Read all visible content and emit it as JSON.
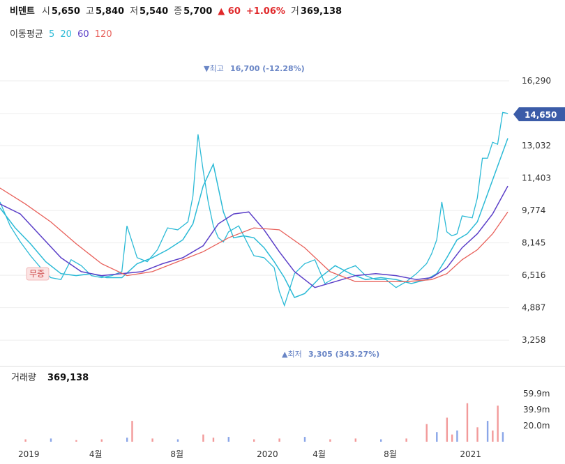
{
  "header": {
    "name": "비덴트",
    "open_label": "시",
    "open": "5,650",
    "high_label": "고",
    "high": "5,840",
    "low_label": "저",
    "low": "5,540",
    "close_label": "종",
    "close": "5,700",
    "change": "▲ 60",
    "change_pct": "+1.06%",
    "volume_label": "거",
    "volume": "369,138"
  },
  "ma_legend": {
    "label": "이동평균",
    "items": [
      {
        "period": "5",
        "color": "#2bbad6"
      },
      {
        "period": "20",
        "color": "#2bbad6"
      },
      {
        "period": "60",
        "color": "#5b3fc8"
      },
      {
        "period": "120",
        "color": "#e8605a"
      }
    ]
  },
  "volume_panel": {
    "label": "거래량",
    "value": "369,138"
  },
  "current_price_tag": "14,650",
  "colors": {
    "up": "#e0292b",
    "down": "#3b6fd8",
    "ma5": "#2bbad6",
    "ma20": "#2bbad6",
    "ma60": "#5b3fc8",
    "ma120": "#e8605a",
    "tag": "#3b5ca8",
    "annot": "#6a86c6"
  },
  "chart_data": {
    "type": "line",
    "price_axis_ticks": [
      "16,290",
      "14,650",
      "13,032",
      "11,403",
      "9,774",
      "8,145",
      "6,516",
      "4,887",
      "3,258"
    ],
    "price_axis_values": [
      16290,
      14650,
      13032,
      11403,
      9774,
      8145,
      6516,
      4887,
      3258
    ],
    "ylim": [
      2600,
      17900
    ],
    "volume_axis_ticks": [
      "59.9m",
      "39.9m",
      "20.0m"
    ],
    "volume_axis_values": [
      59.9,
      39.9,
      20.0
    ],
    "volume_ylim": [
      0,
      80
    ],
    "x_ticks": [
      "2019",
      "4월",
      "8월",
      "2020",
      "4월",
      "8월",
      "2021"
    ],
    "x_tick_positions": [
      0.0,
      0.14,
      0.3,
      0.47,
      0.58,
      0.72,
      0.87
    ],
    "annotations": {
      "max": {
        "text": "▼최고",
        "value": "16,700 (-12.28%)"
      },
      "min": {
        "text": "▲최저",
        "value": "3,305 (343.27%)"
      },
      "event": "무증"
    },
    "series": [
      {
        "name": "5",
        "color": "#2bbad6",
        "x": [
          0,
          0.02,
          0.04,
          0.06,
          0.08,
          0.1,
          0.12,
          0.14,
          0.16,
          0.18,
          0.2,
          0.22,
          0.24,
          0.25,
          0.27,
          0.29,
          0.31,
          0.33,
          0.35,
          0.37,
          0.38,
          0.39,
          0.4,
          0.41,
          0.42,
          0.43,
          0.44,
          0.45,
          0.47,
          0.49,
          0.5,
          0.52,
          0.54,
          0.55,
          0.56,
          0.57,
          0.58,
          0.6,
          0.62,
          0.64,
          0.66,
          0.68,
          0.7,
          0.72,
          0.74,
          0.76,
          0.78,
          0.8,
          0.82,
          0.84,
          0.85,
          0.86,
          0.87,
          0.88,
          0.89,
          0.9,
          0.91,
          0.93,
          0.94,
          0.95,
          0.96,
          0.97,
          0.98,
          0.99,
          1.0
        ],
        "y": [
          10200,
          9000,
          8200,
          7500,
          6900,
          6400,
          6300,
          7300,
          7000,
          6500,
          6400,
          6500,
          6700,
          9000,
          7400,
          7200,
          7800,
          8900,
          8800,
          9200,
          10500,
          13600,
          11800,
          10200,
          9000,
          8400,
          8200,
          8700,
          9000,
          8000,
          7500,
          7400,
          6900,
          5700,
          5000,
          5800,
          6600,
          7100,
          7300,
          6100,
          6400,
          6800,
          7000,
          6500,
          6300,
          6300,
          5900,
          6200,
          6600,
          7100,
          7600,
          8300,
          10200,
          8700,
          8500,
          8600,
          9500,
          9400,
          10400,
          12400,
          12400,
          13200,
          13100,
          14700,
          14650
        ]
      },
      {
        "name": "20",
        "color": "#2bbad6",
        "x": [
          0,
          0.03,
          0.06,
          0.09,
          0.12,
          0.15,
          0.18,
          0.21,
          0.24,
          0.27,
          0.3,
          0.33,
          0.36,
          0.38,
          0.4,
          0.42,
          0.44,
          0.46,
          0.48,
          0.5,
          0.52,
          0.54,
          0.56,
          0.58,
          0.6,
          0.63,
          0.66,
          0.69,
          0.72,
          0.75,
          0.78,
          0.81,
          0.84,
          0.86,
          0.88,
          0.9,
          0.92,
          0.94,
          0.96,
          0.98,
          1.0
        ],
        "y": [
          9900,
          8900,
          8100,
          7200,
          6600,
          6500,
          6600,
          6400,
          6400,
          7100,
          7400,
          7800,
          8300,
          9100,
          11000,
          12100,
          9700,
          8400,
          8500,
          8400,
          7900,
          7200,
          6400,
          5400,
          5600,
          6400,
          7000,
          6600,
          6300,
          6400,
          6300,
          6100,
          6300,
          6600,
          7400,
          8300,
          8600,
          9200,
          10600,
          12000,
          13400
        ]
      },
      {
        "name": "60",
        "color": "#5b3fc8",
        "x": [
          0,
          0.04,
          0.08,
          0.12,
          0.16,
          0.2,
          0.24,
          0.28,
          0.32,
          0.36,
          0.4,
          0.43,
          0.46,
          0.49,
          0.52,
          0.55,
          0.58,
          0.62,
          0.66,
          0.7,
          0.74,
          0.78,
          0.82,
          0.85,
          0.88,
          0.91,
          0.94,
          0.97,
          1.0
        ],
        "y": [
          10100,
          9600,
          8500,
          7400,
          6700,
          6500,
          6600,
          6700,
          7100,
          7400,
          8000,
          9100,
          9600,
          9700,
          8800,
          7700,
          6700,
          5900,
          6200,
          6500,
          6600,
          6500,
          6300,
          6400,
          6900,
          7900,
          8600,
          9600,
          11000
        ]
      },
      {
        "name": "120",
        "color": "#e8605a",
        "x": [
          0,
          0.05,
          0.1,
          0.15,
          0.2,
          0.25,
          0.3,
          0.35,
          0.4,
          0.45,
          0.5,
          0.55,
          0.6,
          0.65,
          0.7,
          0.75,
          0.8,
          0.85,
          0.88,
          0.91,
          0.94,
          0.97,
          1.0
        ],
        "y": [
          10900,
          10100,
          9200,
          8100,
          7100,
          6500,
          6700,
          7200,
          7700,
          8400,
          8900,
          8800,
          7900,
          6700,
          6200,
          6200,
          6200,
          6300,
          6600,
          7300,
          7800,
          8600,
          9700
        ]
      }
    ],
    "volume": {
      "x": [
        0.05,
        0.1,
        0.15,
        0.2,
        0.25,
        0.26,
        0.3,
        0.35,
        0.4,
        0.42,
        0.45,
        0.5,
        0.55,
        0.6,
        0.65,
        0.7,
        0.75,
        0.8,
        0.84,
        0.86,
        0.88,
        0.89,
        0.9,
        0.92,
        0.94,
        0.96,
        0.97,
        0.98,
        0.99
      ],
      "values": [
        3,
        4,
        2,
        3,
        5,
        26,
        4,
        3,
        9,
        5,
        6,
        3,
        4,
        6,
        3,
        4,
        3,
        4,
        22,
        12,
        30,
        9,
        14,
        48,
        18,
        26,
        14,
        45,
        12
      ]
    }
  }
}
